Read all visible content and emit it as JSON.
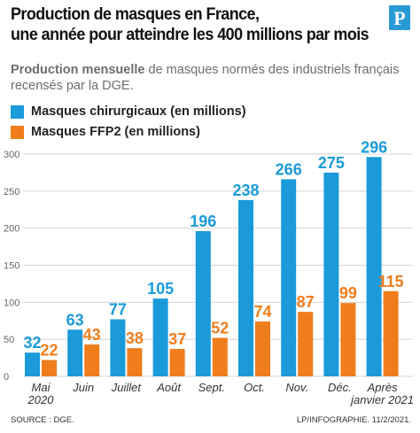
{
  "header": {
    "title_line1": "Production de masques en France,",
    "title_line2": "une année pour atteindre les 400 millions par mois",
    "subtitle_bold": "Production mensuelle",
    "subtitle_rest": " de masques normés des industriels français recensés par la DGE.",
    "logo_letter": "P"
  },
  "footer": {
    "source": "SOURCE : DGE.",
    "credit": "LP/INFOGRAPHIE.  11/2/2021."
  },
  "colors": {
    "series_surgical": "#1a9ad9",
    "series_ffp2": "#ef7d1b",
    "logo_bg": "#2a9ad6",
    "grid": "#d4d4d4",
    "tick_text": "#666666"
  },
  "chart_data": {
    "type": "bar",
    "categories": [
      [
        "Mai",
        "2020"
      ],
      [
        "Juin"
      ],
      [
        "Juillet"
      ],
      [
        "Août"
      ],
      [
        "Sept."
      ],
      [
        "Oct."
      ],
      [
        "Nov."
      ],
      [
        "Déc."
      ],
      [
        "Après",
        "janvier 2021"
      ]
    ],
    "series": [
      {
        "name": "Masques chirurgicaux (en millions)",
        "values": [
          32,
          63,
          77,
          105,
          196,
          238,
          266,
          275,
          296
        ]
      },
      {
        "name": "Masques FFP2 (en millions)",
        "values": [
          22,
          43,
          38,
          37,
          52,
          74,
          87,
          99,
          115
        ]
      }
    ],
    "yticks": [
      0,
      50,
      100,
      150,
      200,
      250,
      300
    ],
    "ylim": [
      0,
      300
    ],
    "grid": true,
    "legend": "top-left"
  }
}
